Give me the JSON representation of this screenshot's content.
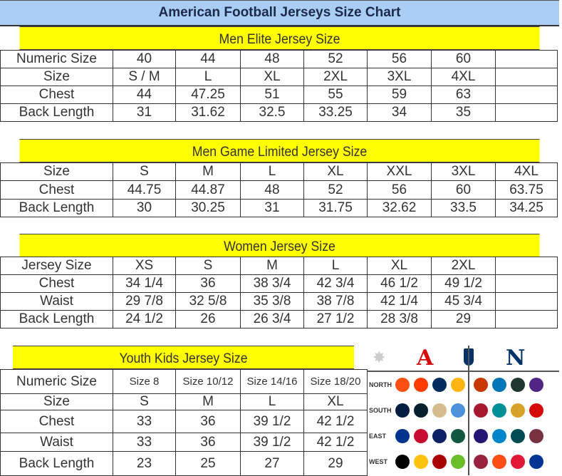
{
  "title": "American Football Jerseys Size Chart",
  "men_elite": {
    "heading": "Men Elite Jersey Size",
    "rows": [
      [
        "Numeric Size",
        "40",
        "44",
        "48",
        "52",
        "56",
        "60",
        ""
      ],
      [
        "Size",
        "S / M",
        "L",
        "XL",
        "2XL",
        "3XL",
        "4XL",
        ""
      ],
      [
        "Chest",
        "44",
        "47.25",
        "51",
        "55",
        "59",
        "63",
        ""
      ],
      [
        "Back Length",
        "31",
        "31.62",
        "32.5",
        "33.25",
        "34",
        "35",
        ""
      ]
    ]
  },
  "men_game": {
    "heading": "Men Game Limited Jersey Size",
    "rows": [
      [
        "Size",
        "S",
        "M",
        "L",
        "XL",
        "XXL",
        "3XL",
        "4XL"
      ],
      [
        "Chest",
        "44.75",
        "44.87",
        "48",
        "52",
        "56",
        "60",
        "63.75"
      ],
      [
        "Back Length",
        "30",
        "30.25",
        "31",
        "31.75",
        "32.62",
        "33.5",
        "34.25"
      ]
    ]
  },
  "women": {
    "heading": "Women Jersey Size",
    "rows": [
      [
        "Jersey Size",
        "XS",
        "S",
        "M",
        "L",
        "XL",
        "2XL",
        ""
      ],
      [
        "Chest",
        "34 1/4",
        "36",
        "38 3/4",
        "42 3/4",
        "46 1/2",
        "49 1/2",
        ""
      ],
      [
        "Waist",
        "29 7/8",
        "32 5/8",
        "35 3/8",
        "38 7/8",
        "42 1/4",
        "45 3/4",
        ""
      ],
      [
        "Back Length",
        "24 1/2",
        "26",
        "26 3/4",
        "27 1/2",
        "28 3/8",
        "29",
        ""
      ]
    ]
  },
  "youth": {
    "heading": "Youth Kids Jersey Size",
    "rows": [
      [
        "Numeric Size",
        "Size 8",
        "Size 10/12",
        "Size 14/16",
        "Size 18/20"
      ],
      [
        "Size",
        "S",
        "M",
        "L",
        "XL"
      ],
      [
        "Chest",
        "33",
        "36",
        "39 1/2",
        "42 1/2"
      ],
      [
        "Waist",
        "33",
        "36",
        "39 1/2",
        "42 1/2"
      ],
      [
        "Back Length",
        "23",
        "25",
        "27",
        "29"
      ]
    ]
  },
  "logos": {
    "afc": "A",
    "nfc": "N",
    "divisions": [
      "NORTH",
      "SOUTH",
      "EAST",
      "WEST"
    ],
    "afc_colors": [
      [
        "#fb4f14",
        "#ff3c00",
        "#002c5f",
        "#ffb612"
      ],
      [
        "#041e42",
        "#03202f",
        "#d3bc8d",
        "#4b92db"
      ],
      [
        "#00338d",
        "#c60c30",
        "#0b2265",
        "#125740"
      ],
      [
        "#000000",
        "#ffc20e",
        "#aa0000",
        "#69be28"
      ]
    ],
    "nfc_colors": [
      [
        "#c83803",
        "#0076b6",
        "#203731",
        "#4f2683"
      ],
      [
        "#a71930",
        "#008e97",
        "#d7a22a",
        "#d50a0a"
      ],
      [
        "#241773",
        "#0085ca",
        "#004c54",
        "#773141"
      ],
      [
        "#97233f",
        "#fb4f14",
        "#e31837",
        "#003594"
      ]
    ]
  }
}
